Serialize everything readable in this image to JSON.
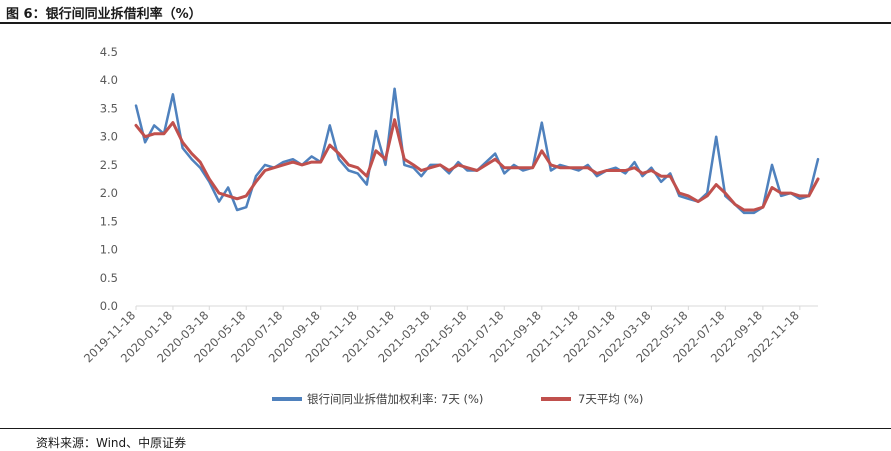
{
  "title": "图 6：银行间同业拆借利率（%）",
  "source": "资料来源：Wind、中原证券",
  "chart_data": {
    "type": "line",
    "y_ticks": [
      "4.5",
      "4.0",
      "3.5",
      "3.0",
      "2.5",
      "2.0",
      "1.5",
      "1.0",
      "0.5",
      "0.0"
    ],
    "ylim": [
      0,
      4.5
    ],
    "x_ticks": [
      "2019-11-18",
      "2020-01-18",
      "2020-03-18",
      "2020-05-18",
      "2020-07-18",
      "2020-09-18",
      "2020-11-18",
      "2021-01-18",
      "2021-03-18",
      "2021-05-18",
      "2021-07-18",
      "2021-09-18",
      "2021-11-18",
      "2022-01-18",
      "2022-03-18",
      "2022-05-18",
      "2022-07-18",
      "2022-09-18",
      "2022-11-18"
    ],
    "grid": false,
    "legend_placement": "bottom",
    "series": [
      {
        "name": "银行间同业拆借加权利率: 7天 (%)",
        "color": "#4f81bd",
        "x": [
          "2019-11-18",
          "2019-12-03",
          "2019-12-18",
          "2020-01-03",
          "2020-01-18",
          "2020-02-03",
          "2020-02-18",
          "2020-03-03",
          "2020-03-18",
          "2020-04-03",
          "2020-04-18",
          "2020-05-03",
          "2020-05-18",
          "2020-06-03",
          "2020-06-18",
          "2020-07-03",
          "2020-07-18",
          "2020-08-03",
          "2020-08-18",
          "2020-09-03",
          "2020-09-18",
          "2020-10-03",
          "2020-10-18",
          "2020-11-03",
          "2020-11-18",
          "2020-12-03",
          "2020-12-18",
          "2021-01-03",
          "2021-01-18",
          "2021-02-03",
          "2021-02-18",
          "2021-03-03",
          "2021-03-18",
          "2021-04-03",
          "2021-04-18",
          "2021-05-03",
          "2021-05-18",
          "2021-06-03",
          "2021-06-18",
          "2021-07-03",
          "2021-07-18",
          "2021-08-03",
          "2021-08-18",
          "2021-09-03",
          "2021-09-18",
          "2021-10-03",
          "2021-10-18",
          "2021-11-03",
          "2021-11-18",
          "2021-12-03",
          "2021-12-18",
          "2022-01-03",
          "2022-01-18",
          "2022-02-03",
          "2022-02-18",
          "2022-03-03",
          "2022-03-18",
          "2022-04-03",
          "2022-04-18",
          "2022-05-03",
          "2022-05-18",
          "2022-06-03",
          "2022-06-18",
          "2022-07-03",
          "2022-07-18",
          "2022-08-03",
          "2022-08-18",
          "2022-09-03",
          "2022-09-18",
          "2022-10-03",
          "2022-10-18",
          "2022-11-03",
          "2022-11-18",
          "2022-12-03",
          "2022-12-18"
        ],
        "values": [
          3.55,
          2.9,
          3.2,
          3.05,
          3.75,
          2.8,
          2.6,
          2.45,
          2.2,
          1.85,
          2.1,
          1.7,
          1.75,
          2.3,
          2.5,
          2.45,
          2.55,
          2.6,
          2.5,
          2.65,
          2.55,
          3.2,
          2.6,
          2.4,
          2.35,
          2.15,
          3.1,
          2.5,
          3.85,
          2.5,
          2.45,
          2.3,
          2.5,
          2.5,
          2.35,
          2.55,
          2.4,
          2.4,
          2.55,
          2.7,
          2.35,
          2.5,
          2.4,
          2.45,
          3.25,
          2.4,
          2.5,
          2.45,
          2.4,
          2.5,
          2.3,
          2.4,
          2.45,
          2.35,
          2.55,
          2.3,
          2.45,
          2.2,
          2.35,
          1.95,
          1.9,
          1.85,
          2.0,
          3.0,
          1.95,
          1.8,
          1.65,
          1.65,
          1.75,
          2.5,
          1.95,
          2.0,
          1.9,
          1.95,
          2.6
        ]
      },
      {
        "name": "7天平均 (%)",
        "color": "#c0504d",
        "x": [
          "2019-11-18",
          "2019-12-03",
          "2019-12-18",
          "2020-01-03",
          "2020-01-18",
          "2020-02-03",
          "2020-02-18",
          "2020-03-03",
          "2020-03-18",
          "2020-04-03",
          "2020-04-18",
          "2020-05-03",
          "2020-05-18",
          "2020-06-03",
          "2020-06-18",
          "2020-07-03",
          "2020-07-18",
          "2020-08-03",
          "2020-08-18",
          "2020-09-03",
          "2020-09-18",
          "2020-10-03",
          "2020-10-18",
          "2020-11-03",
          "2020-11-18",
          "2020-12-03",
          "2020-12-18",
          "2021-01-03",
          "2021-01-18",
          "2021-02-03",
          "2021-02-18",
          "2021-03-03",
          "2021-03-18",
          "2021-04-03",
          "2021-04-18",
          "2021-05-03",
          "2021-05-18",
          "2021-06-03",
          "2021-06-18",
          "2021-07-03",
          "2021-07-18",
          "2021-08-03",
          "2021-08-18",
          "2021-09-03",
          "2021-09-18",
          "2021-10-03",
          "2021-10-18",
          "2021-11-03",
          "2021-11-18",
          "2021-12-03",
          "2021-12-18",
          "2022-01-03",
          "2022-01-18",
          "2022-02-03",
          "2022-02-18",
          "2022-03-03",
          "2022-03-18",
          "2022-04-03",
          "2022-04-18",
          "2022-05-03",
          "2022-05-18",
          "2022-06-03",
          "2022-06-18",
          "2022-07-03",
          "2022-07-18",
          "2022-08-03",
          "2022-08-18",
          "2022-09-03",
          "2022-09-18",
          "2022-10-03",
          "2022-10-18",
          "2022-11-03",
          "2022-11-18",
          "2022-12-03",
          "2022-12-18"
        ],
        "values": [
          3.2,
          3.0,
          3.05,
          3.05,
          3.25,
          2.9,
          2.7,
          2.55,
          2.25,
          2.0,
          1.95,
          1.9,
          1.95,
          2.2,
          2.4,
          2.45,
          2.5,
          2.55,
          2.5,
          2.55,
          2.55,
          2.85,
          2.7,
          2.5,
          2.45,
          2.3,
          2.75,
          2.6,
          3.3,
          2.6,
          2.5,
          2.4,
          2.45,
          2.5,
          2.4,
          2.5,
          2.45,
          2.4,
          2.5,
          2.6,
          2.45,
          2.45,
          2.45,
          2.45,
          2.75,
          2.5,
          2.45,
          2.45,
          2.45,
          2.45,
          2.35,
          2.4,
          2.4,
          2.4,
          2.45,
          2.35,
          2.4,
          2.3,
          2.3,
          2.0,
          1.95,
          1.85,
          1.95,
          2.15,
          2.0,
          1.8,
          1.7,
          1.7,
          1.75,
          2.1,
          2.0,
          2.0,
          1.95,
          1.95,
          2.25
        ]
      }
    ]
  }
}
